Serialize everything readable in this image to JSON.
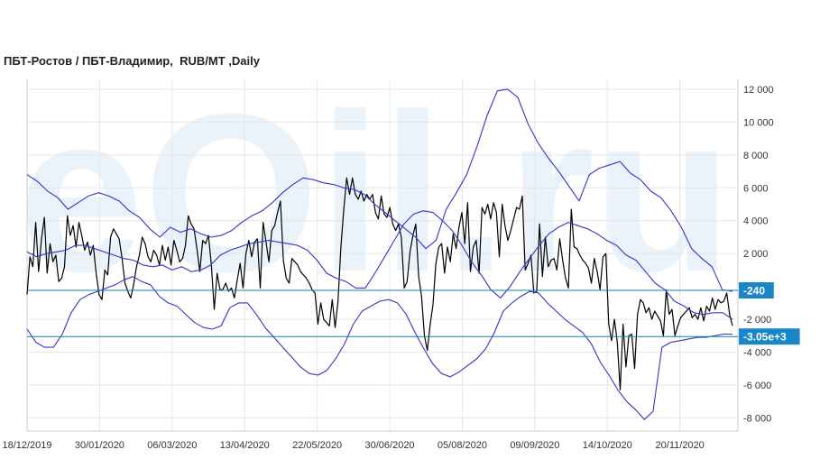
{
  "chart_data": {
    "type": "line",
    "title": "ПБТ-Ростов / ПБТ-Владимир,  RUB/MT ,Daily",
    "watermark": "eOil.ru",
    "x_tick_labels": [
      "18/12/2019",
      "30/01/2020",
      "06/03/2020",
      "13/04/2020",
      "22/05/2020",
      "30/06/2020",
      "05/08/2020",
      "09/09/2020",
      "14/10/2020",
      "20/11/2020"
    ],
    "y_tick_values": [
      12000,
      10000,
      8000,
      6000,
      4000,
      2000,
      -2000,
      -4000,
      -6000,
      -8000
    ],
    "y_tick_labels": [
      "12 000",
      "10 000",
      "8 000",
      "6 000",
      "4 000",
      "2 000",
      "-2 000",
      "-4 000",
      "-6 000",
      "-8 000"
    ],
    "ylim": [
      -8800,
      12600
    ],
    "grid": true,
    "colors": {
      "price": "#000000",
      "bands": "#3333cc",
      "hline": "#1a7fa8",
      "tag_bg": "#1a86c8",
      "grid": "#e6e6e6"
    },
    "horizontal_lines": [
      {
        "value": -240,
        "label": "-240"
      },
      {
        "value": -3050,
        "label": "-3.05e+3"
      }
    ],
    "series": [
      {
        "role": "price",
        "values": [
          -500,
          1800,
          1200,
          3900,
          900,
          2900,
          4200,
          800,
          2600,
          1500,
          1900,
          300,
          500,
          1200,
          4300,
          3100,
          3700,
          2400,
          3900,
          3100,
          2200,
          2700,
          1900,
          2500,
          800,
          -500,
          -800,
          1000,
          700,
          3000,
          3500,
          3200,
          2900,
          1700,
          200,
          -300,
          -700,
          100,
          1200,
          1900,
          3000,
          2600,
          1800,
          1500,
          2200,
          1900,
          1300,
          2500,
          1600,
          2400,
          1300,
          2800,
          2200,
          1500,
          1700,
          2500,
          4300,
          3800,
          3500,
          2300,
          900,
          2800,
          2600,
          3100,
          1300,
          -1400,
          800,
          -200,
          -200,
          200,
          -300,
          -100,
          -700,
          400,
          1400,
          -100,
          2000,
          2800,
          1800,
          2700,
          2900,
          -100,
          3900,
          2700,
          1500,
          3400,
          3700,
          4500,
          5200,
          1600,
          500,
          200,
          1700,
          1500,
          1300,
          900,
          700,
          500,
          200,
          -200,
          -400,
          -2300,
          -1000,
          -2000,
          -2200,
          -2400,
          -800,
          -2500,
          -900,
          2400,
          4700,
          6600,
          5600,
          6600,
          5600,
          5300,
          5800,
          5200,
          5600,
          5300,
          5600,
          4500,
          4100,
          5500,
          4400,
          4200,
          4800,
          3800,
          3400,
          3800,
          3000,
          -100,
          300,
          2100,
          3100,
          3800,
          600,
          -600,
          -3000,
          -3900,
          -2300,
          -1100,
          1400,
          2400,
          2600,
          800,
          2400,
          1500,
          3200,
          2300,
          3600,
          4500,
          2600,
          5100,
          900,
          2400,
          2800,
          800,
          4800,
          4400,
          5000,
          4100,
          5100,
          4500,
          1800,
          5000,
          3700,
          2800,
          3400,
          4100,
          4800,
          4700,
          5500,
          1000,
          1400,
          1900,
          -400,
          -300,
          3800,
          600,
          3000,
          1200,
          1600,
          1700,
          1000,
          2900,
          1600,
          500,
          -100,
          4700,
          2400,
          2300,
          1900,
          1600,
          1400,
          1100,
          200,
          1700,
          900,
          -200,
          1800,
          2000,
          -2300,
          -3300,
          -2000,
          -3400,
          -6300,
          -2300,
          -4900,
          -3000,
          -2900,
          -5000,
          -1700,
          -800,
          -1000,
          -1600,
          -1300,
          -2000,
          -1500,
          -1800,
          -2100,
          -3000,
          -200,
          -1700,
          -1400,
          -3000,
          -2400,
          -1900,
          -1700,
          -1500,
          -1300,
          -1900,
          -1700,
          -2000,
          -1300,
          -2100,
          -1200,
          -1500,
          -700,
          -1400,
          -800,
          -1000,
          -900,
          -400,
          -1700,
          -2400
        ]
      },
      {
        "role": "band-upper",
        "values": [
          6800,
          6400,
          5800,
          5400,
          4700,
          5100,
          5500,
          5700,
          5500,
          5200,
          4600,
          4200,
          3500,
          3000,
          3600,
          3300,
          3500,
          3200,
          3000,
          3100,
          3400,
          3900,
          4300,
          4600,
          5100,
          5700,
          6200,
          6600,
          6500,
          6300,
          6200,
          6000,
          5900,
          5600,
          5000,
          4500,
          4000,
          3500,
          3000,
          2300,
          2800,
          4700,
          5700,
          6800,
          8500,
          10400,
          11900,
          12000,
          11500,
          9900,
          8700,
          7800,
          7000,
          6100,
          5200,
          6800,
          7200,
          7400,
          7600,
          6900,
          6500,
          5800,
          5400,
          4600,
          3600,
          2300,
          1700,
          1200,
          -200,
          -300
        ]
      },
      {
        "role": "band-mid",
        "values": [
          2100,
          1800,
          2000,
          2100,
          2200,
          2500,
          2500,
          2300,
          2100,
          1900,
          1700,
          1600,
          1300,
          1200,
          1300,
          1000,
          1200,
          900,
          1000,
          1300,
          1900,
          2200,
          2400,
          2600,
          2700,
          2800,
          2700,
          2600,
          2500,
          2200,
          1600,
          800,
          500,
          300,
          -100,
          -100,
          800,
          1800,
          2800,
          3800,
          4400,
          4600,
          4500,
          4000,
          3400,
          2500,
          1500,
          700,
          -200,
          -700,
          0,
          900,
          1700,
          2500,
          3200,
          3600,
          3900,
          3700,
          3500,
          3200,
          2800,
          2500,
          1900,
          1600,
          900,
          200,
          -200,
          -900,
          -1200,
          -1600,
          -1700,
          -1600,
          -1600,
          -2000
        ]
      },
      {
        "role": "band-lower",
        "values": [
          -2600,
          -3400,
          -3700,
          -3700,
          -2900,
          -1600,
          -800,
          -500,
          -300,
          -100,
          100,
          400,
          600,
          300,
          100,
          -600,
          -1000,
          -1200,
          -1700,
          -2200,
          -2500,
          -2600,
          -2400,
          -1300,
          -1000,
          -1000,
          -1700,
          -2500,
          -3100,
          -3700,
          -4300,
          -4900,
          -5300,
          -5400,
          -5100,
          -4400,
          -3500,
          -2300,
          -1500,
          -1200,
          -900,
          -800,
          -1000,
          -1700,
          -2800,
          -3800,
          -4700,
          -5300,
          -5500,
          -5200,
          -4800,
          -4400,
          -3800,
          -2800,
          -1500,
          -1000,
          -600,
          -300,
          -400,
          -1000,
          -1500,
          -2000,
          -2400,
          -2800,
          -3500,
          -4600,
          -5400,
          -6300,
          -7000,
          -7500,
          -8100,
          -7600,
          -3700,
          -3400,
          -3300,
          -3200,
          -3100,
          -3100,
          -3000,
          -2900,
          -2900
        ]
      }
    ]
  }
}
